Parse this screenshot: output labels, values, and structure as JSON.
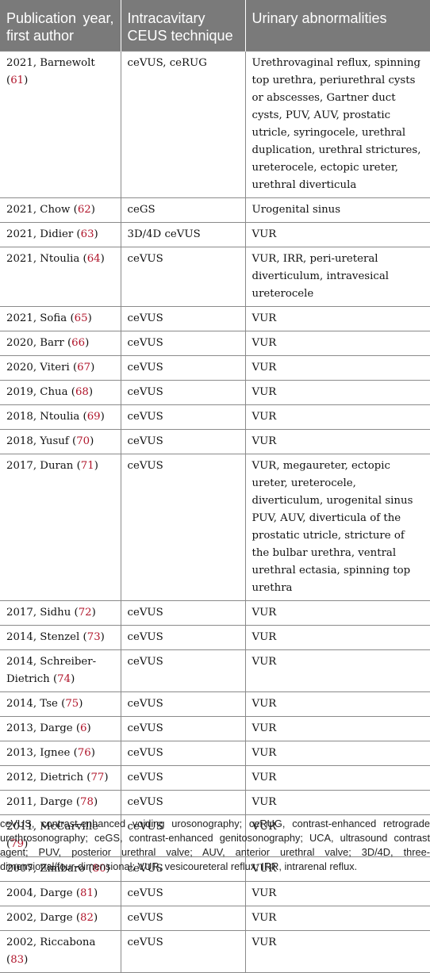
{
  "header": {
    "col1": "Publication year, first author",
    "col2": "Intracavitary CEUS technique",
    "col3": "Urinary abnormalities"
  },
  "rows": [
    {
      "year_author": "2021, Barnewolt",
      "ref": "61",
      "technique": "ceVUS, ceRUG",
      "abnormalities": "Urethrovaginal reflux, spinning top urethra, periurethral cysts or abscesses, Gartner duct cysts, PUV, AUV, prostatic utricle, syringocele, urethral duplication, urethral strictures, ureterocele, ectopic ureter, urethral diverticula"
    },
    {
      "year_author": "2021, Chow",
      "ref": "62",
      "technique": "ceGS",
      "abnormalities": "Urogenital sinus"
    },
    {
      "year_author": "2021, Didier",
      "ref": "63",
      "technique": "3D/4D ceVUS",
      "abnormalities": "VUR"
    },
    {
      "year_author": "2021, Ntoulia",
      "ref": "64",
      "technique": "ceVUS",
      "abnormalities": "VUR, IRR, peri-ureteral diverticulum, intravesical ureterocele"
    },
    {
      "year_author": "2021, Sofia",
      "ref": "65",
      "technique": "ceVUS",
      "abnormalities": "VUR"
    },
    {
      "year_author": "2020, Barr",
      "ref": "66",
      "technique": "ceVUS",
      "abnormalities": "VUR"
    },
    {
      "year_author": "2020, Viteri",
      "ref": "67",
      "technique": "ceVUS",
      "abnormalities": "VUR"
    },
    {
      "year_author": "2019, Chua",
      "ref": "68",
      "technique": "ceVUS",
      "abnormalities": "VUR"
    },
    {
      "year_author": "2018, Ntoulia",
      "ref": "69",
      "technique": "ceVUS",
      "abnormalities": "VUR"
    },
    {
      "year_author": "2018, Yusuf",
      "ref": "70",
      "technique": "ceVUS",
      "abnormalities": "VUR"
    },
    {
      "year_author": "2017, Duran",
      "ref": "71",
      "technique": "ceVUS",
      "abnormalities": "VUR, megaureter, ectopic ureter, ureterocele, diverticulum, urogenital sinus PUV, AUV, diverticula of the prostatic utricle, stricture of the bulbar urethra, ventral urethral ectasia, spinning top urethra"
    },
    {
      "year_author": "2017, Sidhu",
      "ref": "72",
      "technique": "ceVUS",
      "abnormalities": "VUR"
    },
    {
      "year_author": "2014, Stenzel",
      "ref": "73",
      "technique": "ceVUS",
      "abnormalities": "VUR"
    },
    {
      "year_author": "2014, Schreiber-Dietrich",
      "ref": "74",
      "technique": "ceVUS",
      "abnormalities": "VUR"
    },
    {
      "year_author": "2014, Tse",
      "ref": "75",
      "technique": "ceVUS",
      "abnormalities": "VUR"
    },
    {
      "year_author": "2013, Darge",
      "ref": "6",
      "technique": "ceVUS",
      "abnormalities": "VUR"
    },
    {
      "year_author": "2013, Ignee",
      "ref": "76",
      "technique": "ceVUS",
      "abnormalities": "VUR"
    },
    {
      "year_author": "2012, Dietrich",
      "ref": "77",
      "technique": "ceVUS",
      "abnormalities": "VUR"
    },
    {
      "year_author": "2011, Darge",
      "ref": "78",
      "technique": "ceVUS",
      "abnormalities": "VUR"
    },
    {
      "year_author": "2011, McCarville",
      "ref": "79",
      "technique": "ceVUS",
      "abnormalities": "VUR"
    },
    {
      "year_author": "2007, Zimbaro",
      "ref": "80",
      "technique": "ceVUS",
      "abnormalities": "VUR"
    },
    {
      "year_author": "2004, Darge",
      "ref": "81",
      "technique": "ceVUS",
      "abnormalities": "VUR"
    },
    {
      "year_author": "2002, Darge",
      "ref": "82",
      "technique": "ceVUS",
      "abnormalities": "VUR"
    },
    {
      "year_author": "2002, Riccabona",
      "ref": "83",
      "technique": "ceVUS",
      "abnormalities": "VUR"
    }
  ],
  "footnote": "ceVUS, contrast-enhanced voiding urosonography; ceRUG, contrast-enhanced retrograde urethrosonography; ceGS, contrast-enhanced genitosonography; UCA, ultrasound contrast agent; PUV, posterior urethral valve; AUV, anterior urethral valve; 3D/4D, three-dimensional/four-dimensional; VUR, vesicoureteral reflux; IRR, intrarenal reflux.",
  "colors": {
    "header_bg": "#7a7a7a",
    "header_text": "#ffffff",
    "reference_link": "#b0142a",
    "rule": "#8a8a8a"
  }
}
